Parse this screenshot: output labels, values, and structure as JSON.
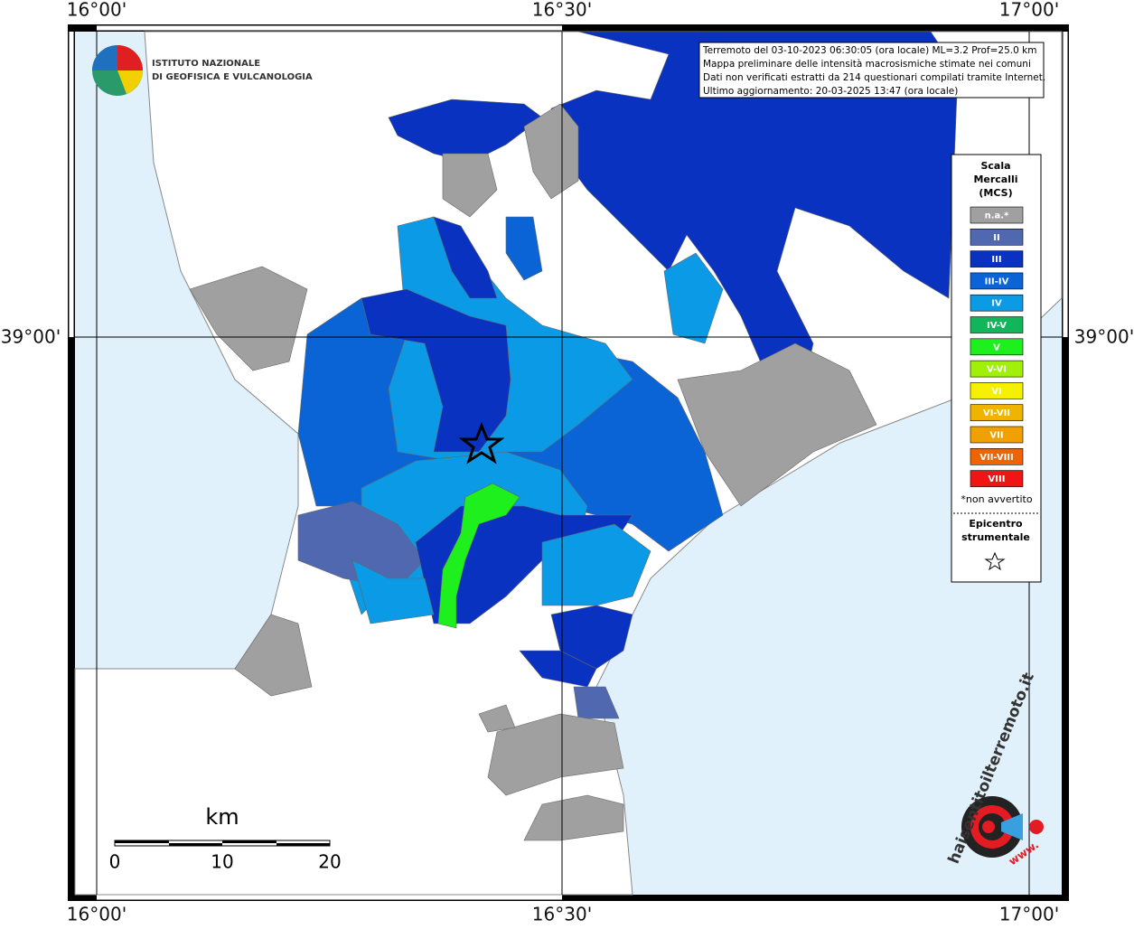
{
  "coordinates": {
    "top": [
      "16°00'",
      "16°30'",
      "17°00'"
    ],
    "bottom": [
      "16°00'",
      "16°30'",
      "17°00'"
    ],
    "left": "39°00'",
    "right": "39°00'"
  },
  "institute": [
    "ISTITUTO NAZIONALE",
    "DI GEOFISICA E VULCANOLOGIA"
  ],
  "info": [
    "Terremoto del 03-10-2023 06:30:05 (ora locale) ML=3.2 Prof=25.0 km",
    "Mappa preliminare delle intensità macrosismiche stimate nei comuni",
    "Dati non verificati estratti da 214 questionari compilati tramite Internet.",
    "Ultimo aggiornamento: 20-03-2025 13:47 (ora locale)"
  ],
  "legend": {
    "title": [
      "Scala",
      "Mercalli",
      "(MCS)"
    ],
    "items": [
      {
        "label": "n.a.*",
        "color": "#a0a0a0"
      },
      {
        "label": "II",
        "color": "#5068b0"
      },
      {
        "label": "III",
        "color": "#0a32c0"
      },
      {
        "label": "III-IV",
        "color": "#0a64d6"
      },
      {
        "label": "IV",
        "color": "#0a9ae6"
      },
      {
        "label": "IV-V",
        "color": "#11b65a"
      },
      {
        "label": "V",
        "color": "#1ef01e"
      },
      {
        "label": "V-VI",
        "color": "#a0f00a"
      },
      {
        "label": "VI",
        "color": "#f5f000"
      },
      {
        "label": "VI-VII",
        "color": "#f0b400"
      },
      {
        "label": "VII",
        "color": "#f0a000"
      },
      {
        "label": "VII-VIII",
        "color": "#f06400"
      },
      {
        "label": "VIII",
        "color": "#f01414"
      }
    ],
    "note": "*non avvertito",
    "epicenter": [
      "Epicentro",
      "strumentale"
    ]
  },
  "scalebar": {
    "unit": "km",
    "labels": [
      "0",
      "10",
      "20"
    ]
  },
  "site": {
    "name": "haisentitoilterremoto.it",
    "prefix": "www."
  }
}
